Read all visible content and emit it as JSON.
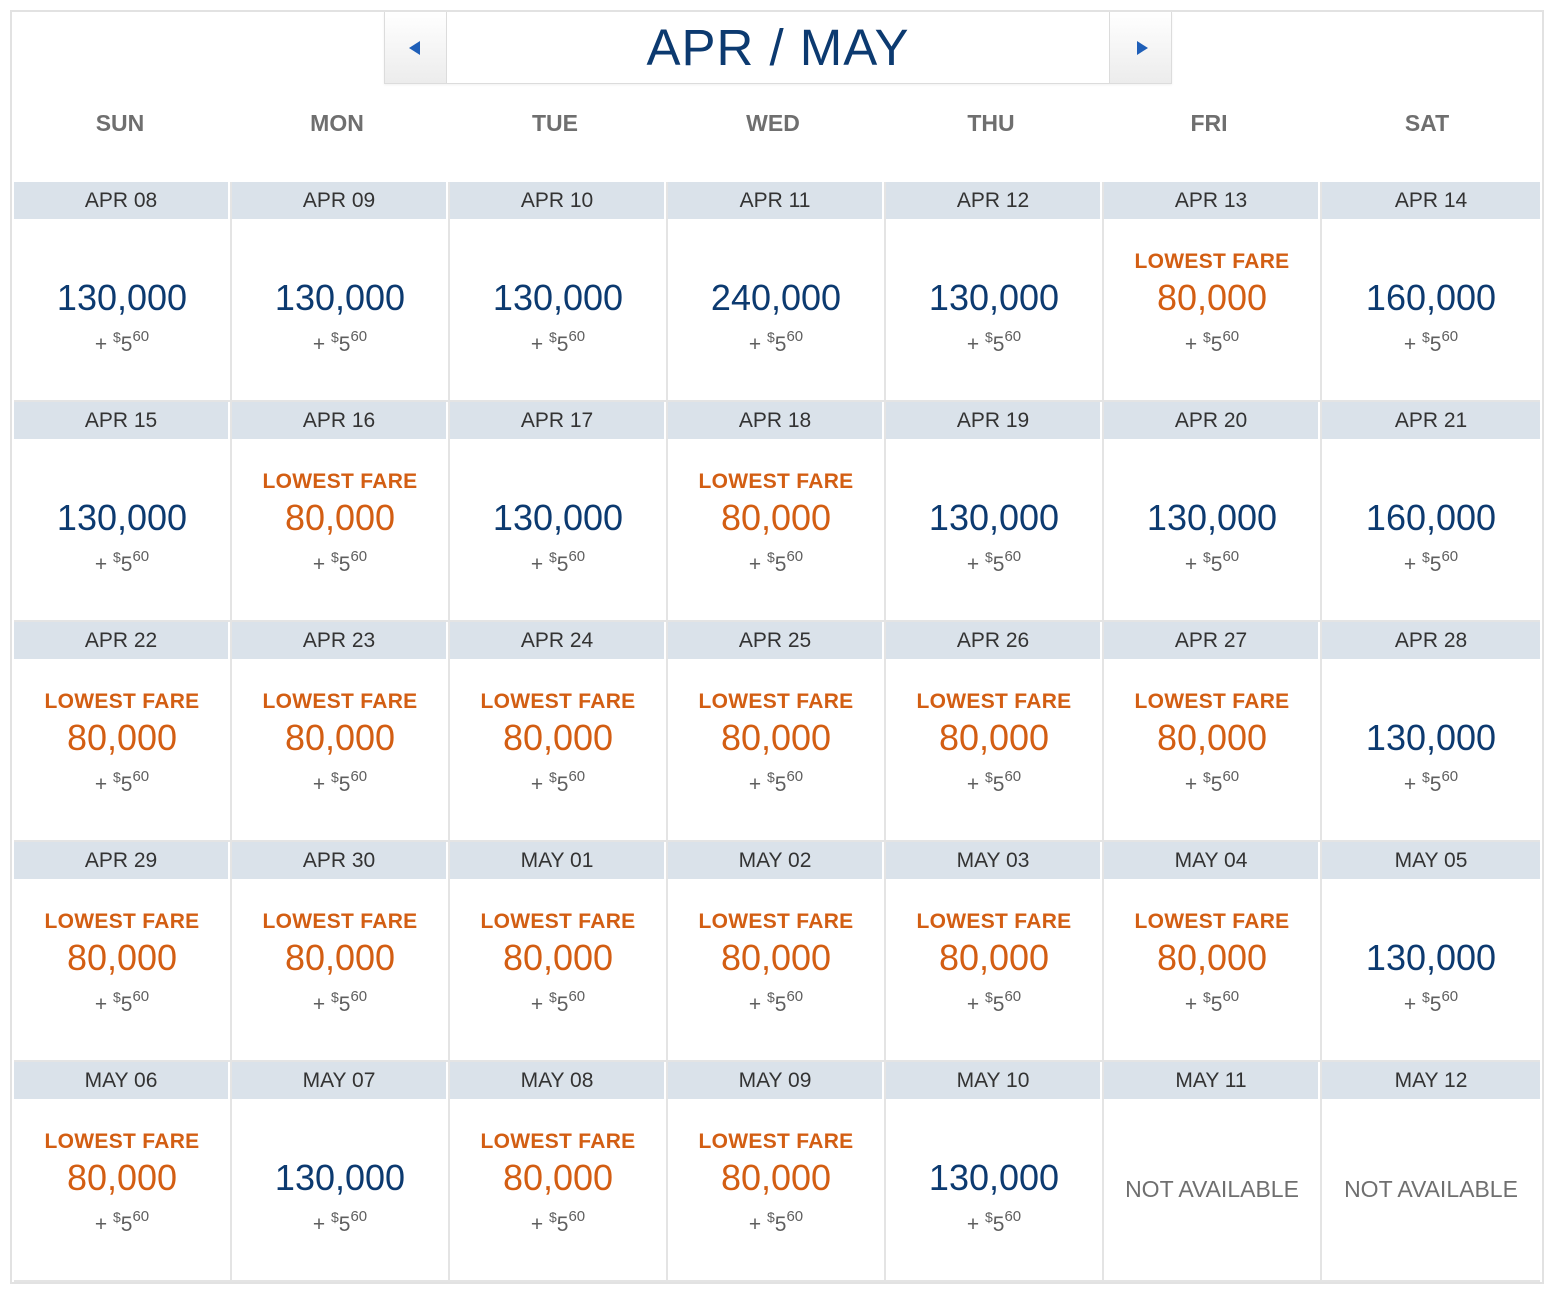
{
  "nav": {
    "title": "APR / MAY",
    "prev_label": "Previous month",
    "next_label": "Next month"
  },
  "weekdays": [
    "SUN",
    "MON",
    "TUE",
    "WED",
    "THU",
    "FRI",
    "SAT"
  ],
  "labels": {
    "lowest_fare": "LOWEST FARE",
    "not_available": "NOT AVAILABLE",
    "fee_prefix": "+",
    "fee_currency": "$",
    "fee_dollars": "5",
    "fee_cents": "60"
  },
  "colors": {
    "navy": "#0c3a70",
    "orange": "#d35e13",
    "date_bar": "#dae2ea",
    "arrow": "#1f5fb8"
  },
  "weeks": [
    [
      {
        "date": "APR 08",
        "price": "130,000",
        "lowest": false,
        "available": true
      },
      {
        "date": "APR 09",
        "price": "130,000",
        "lowest": false,
        "available": true
      },
      {
        "date": "APR 10",
        "price": "130,000",
        "lowest": false,
        "available": true
      },
      {
        "date": "APR 11",
        "price": "240,000",
        "lowest": false,
        "available": true
      },
      {
        "date": "APR 12",
        "price": "130,000",
        "lowest": false,
        "available": true
      },
      {
        "date": "APR 13",
        "price": "80,000",
        "lowest": true,
        "available": true
      },
      {
        "date": "APR 14",
        "price": "160,000",
        "lowest": false,
        "available": true
      }
    ],
    [
      {
        "date": "APR 15",
        "price": "130,000",
        "lowest": false,
        "available": true
      },
      {
        "date": "APR 16",
        "price": "80,000",
        "lowest": true,
        "available": true
      },
      {
        "date": "APR 17",
        "price": "130,000",
        "lowest": false,
        "available": true
      },
      {
        "date": "APR 18",
        "price": "80,000",
        "lowest": true,
        "available": true
      },
      {
        "date": "APR 19",
        "price": "130,000",
        "lowest": false,
        "available": true
      },
      {
        "date": "APR 20",
        "price": "130,000",
        "lowest": false,
        "available": true
      },
      {
        "date": "APR 21",
        "price": "160,000",
        "lowest": false,
        "available": true
      }
    ],
    [
      {
        "date": "APR 22",
        "price": "80,000",
        "lowest": true,
        "available": true
      },
      {
        "date": "APR 23",
        "price": "80,000",
        "lowest": true,
        "available": true
      },
      {
        "date": "APR 24",
        "price": "80,000",
        "lowest": true,
        "available": true
      },
      {
        "date": "APR 25",
        "price": "80,000",
        "lowest": true,
        "available": true
      },
      {
        "date": "APR 26",
        "price": "80,000",
        "lowest": true,
        "available": true
      },
      {
        "date": "APR 27",
        "price": "80,000",
        "lowest": true,
        "available": true
      },
      {
        "date": "APR 28",
        "price": "130,000",
        "lowest": false,
        "available": true
      }
    ],
    [
      {
        "date": "APR 29",
        "price": "80,000",
        "lowest": true,
        "available": true
      },
      {
        "date": "APR 30",
        "price": "80,000",
        "lowest": true,
        "available": true
      },
      {
        "date": "MAY 01",
        "price": "80,000",
        "lowest": true,
        "available": true
      },
      {
        "date": "MAY 02",
        "price": "80,000",
        "lowest": true,
        "available": true
      },
      {
        "date": "MAY 03",
        "price": "80,000",
        "lowest": true,
        "available": true
      },
      {
        "date": "MAY 04",
        "price": "80,000",
        "lowest": true,
        "available": true
      },
      {
        "date": "MAY 05",
        "price": "130,000",
        "lowest": false,
        "available": true
      }
    ],
    [
      {
        "date": "MAY 06",
        "price": "80,000",
        "lowest": true,
        "available": true
      },
      {
        "date": "MAY 07",
        "price": "130,000",
        "lowest": false,
        "available": true
      },
      {
        "date": "MAY 08",
        "price": "80,000",
        "lowest": true,
        "available": true
      },
      {
        "date": "MAY 09",
        "price": "80,000",
        "lowest": true,
        "available": true
      },
      {
        "date": "MAY 10",
        "price": "130,000",
        "lowest": false,
        "available": true
      },
      {
        "date": "MAY 11",
        "price": "",
        "lowest": false,
        "available": false
      },
      {
        "date": "MAY 12",
        "price": "",
        "lowest": false,
        "available": false
      }
    ]
  ]
}
